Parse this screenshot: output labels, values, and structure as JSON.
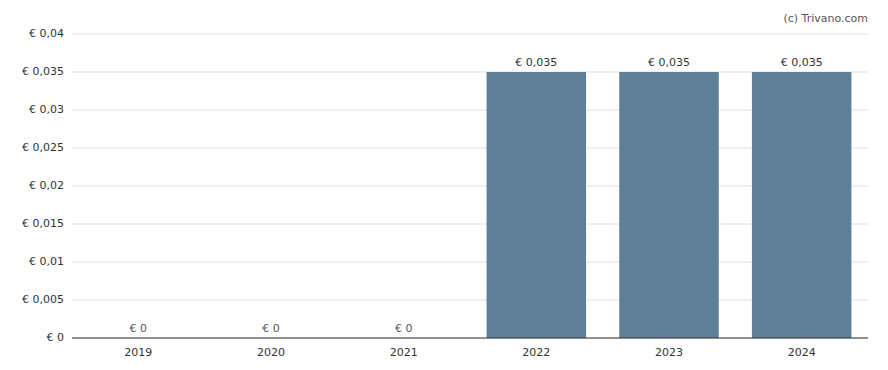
{
  "chart_data": {
    "type": "bar",
    "categories": [
      "2019",
      "2020",
      "2021",
      "2022",
      "2023",
      "2024"
    ],
    "values": [
      0,
      0,
      0,
      0.035,
      0.035,
      0.035
    ],
    "value_labels": [
      "€ 0",
      "€ 0",
      "€ 0",
      "€ 0,035",
      "€ 0,035",
      "€ 0,035"
    ],
    "data_labels": true,
    "color": "#5e7f96",
    "ylim": [
      0,
      0.04
    ],
    "yticks": [
      {
        "value": 0,
        "label": "€ 0"
      },
      {
        "value": 0.005,
        "label": "€ 0,005"
      },
      {
        "value": 0.01,
        "label": "€ 0,01"
      },
      {
        "value": 0.015,
        "label": "€ 0,015"
      },
      {
        "value": 0.02,
        "label": "€ 0,02"
      },
      {
        "value": 0.025,
        "label": "€ 0,025"
      },
      {
        "value": 0.03,
        "label": "€ 0,03"
      },
      {
        "value": 0.035,
        "label": "€ 0,035"
      },
      {
        "value": 0.04,
        "label": "€ 0,04"
      }
    ],
    "grid": true,
    "annotations": [
      "(c) Trivano.com"
    ]
  }
}
